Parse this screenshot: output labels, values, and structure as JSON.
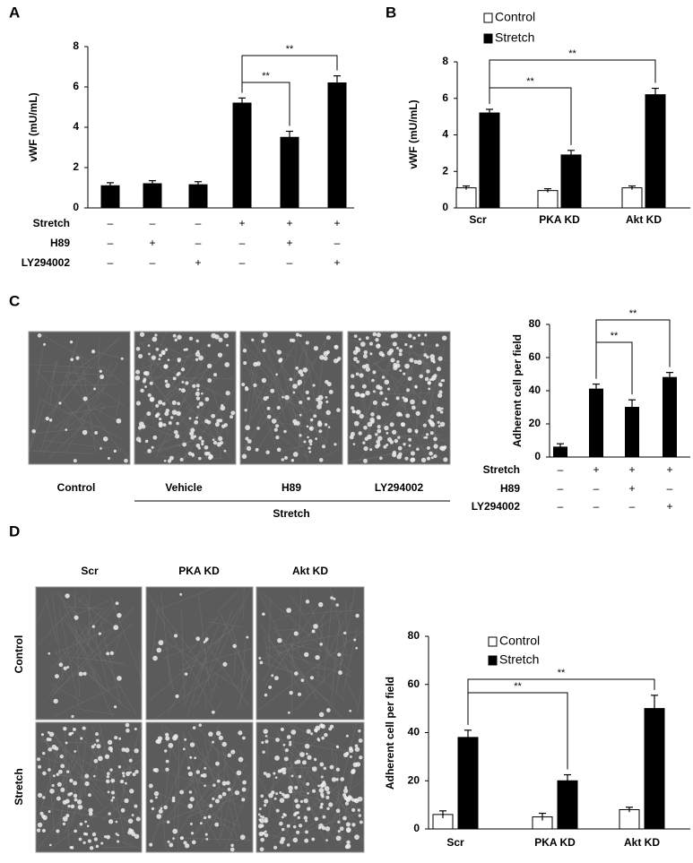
{
  "panel_labels": [
    "A",
    "B",
    "C",
    "D"
  ],
  "images_c": {
    "labels": [
      "Control",
      "Vehicle",
      "H89",
      "LY294002"
    ],
    "group_label": "Stretch"
  },
  "images_d": {
    "columns": [
      "Scr",
      "PKA KD",
      "Akt KD"
    ],
    "rows": [
      "Control",
      "Stretch"
    ]
  },
  "chart_data": [
    {
      "type": "bar",
      "y_label": "vWF  (mU/mL)",
      "values": [
        1.1,
        1.2,
        1.15,
        5.2,
        3.5,
        6.2
      ],
      "errors": [
        0.15,
        0.15,
        0.15,
        0.25,
        0.3,
        0.35
      ],
      "color": "#000000",
      "ylim": [
        0,
        8
      ],
      "yticks": [
        0,
        2,
        4,
        6,
        8
      ],
      "treatments": [
        {
          "name": "Stretch",
          "marks": [
            "–",
            "–",
            "–",
            "+",
            "+",
            "+"
          ]
        },
        {
          "name": "H89",
          "marks": [
            "–",
            "+",
            "–",
            "–",
            "+",
            "–"
          ]
        },
        {
          "name": "LY294002",
          "marks": [
            "–",
            "–",
            "+",
            "–",
            "–",
            "+"
          ]
        }
      ],
      "annotations": [
        "**",
        "**"
      ]
    },
    {
      "type": "bar",
      "y_label": "vWF  (mU/mL)",
      "categories": [
        "Scr",
        "PKA KD",
        "Akt KD"
      ],
      "series": [
        {
          "name": "Control",
          "color": "#ffffff",
          "values": [
            1.1,
            0.95,
            1.1
          ],
          "errors": [
            0.1,
            0.1,
            0.1
          ]
        },
        {
          "name": "Stretch",
          "color": "#000000",
          "values": [
            5.2,
            2.9,
            6.2
          ],
          "errors": [
            0.2,
            0.25,
            0.35
          ]
        }
      ],
      "ylim": [
        0,
        8
      ],
      "yticks": [
        0,
        2,
        4,
        6,
        8
      ],
      "annotations": [
        "**",
        "**"
      ]
    },
    {
      "type": "bar",
      "y_label": "Adherent cell per field",
      "values": [
        6,
        41,
        30,
        48
      ],
      "errors": [
        2,
        3,
        4.5,
        3
      ],
      "color": "#000000",
      "ylim": [
        0,
        80
      ],
      "yticks": [
        0,
        20,
        40,
        60,
        80
      ],
      "treatments": [
        {
          "name": "Stretch",
          "marks": [
            "–",
            "+",
            "+",
            "+"
          ]
        },
        {
          "name": "H89",
          "marks": [
            "–",
            "–",
            "+",
            "–"
          ]
        },
        {
          "name": "LY294002",
          "marks": [
            "–",
            "–",
            "–",
            "+"
          ]
        }
      ],
      "annotations": [
        "**",
        "**"
      ]
    },
    {
      "type": "bar",
      "y_label": "Adherent cell per field",
      "categories": [
        "Scr",
        "PKA KD",
        "Akt KD"
      ],
      "series": [
        {
          "name": "Control",
          "color": "#ffffff",
          "values": [
            6,
            5,
            8
          ],
          "errors": [
            1.5,
            1.5,
            1
          ]
        },
        {
          "name": "Stretch",
          "color": "#000000",
          "values": [
            38,
            20,
            50
          ],
          "errors": [
            3,
            2.5,
            5.5
          ]
        }
      ],
      "ylim": [
        0,
        80
      ],
      "yticks": [
        0,
        20,
        40,
        60,
        80
      ],
      "annotations": [
        "**",
        "**"
      ]
    }
  ]
}
